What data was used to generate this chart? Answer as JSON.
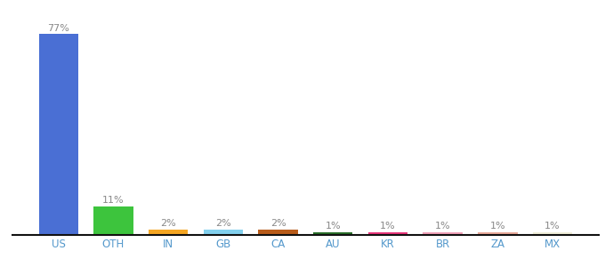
{
  "categories": [
    "US",
    "OTH",
    "IN",
    "GB",
    "CA",
    "AU",
    "KR",
    "BR",
    "ZA",
    "MX"
  ],
  "values": [
    77,
    11,
    2,
    2,
    2,
    1,
    1,
    1,
    1,
    1
  ],
  "labels": [
    "77%",
    "11%",
    "2%",
    "2%",
    "2%",
    "1%",
    "1%",
    "1%",
    "1%",
    "1%"
  ],
  "bar_colors": [
    "#4a6fd4",
    "#3dc43d",
    "#f5a623",
    "#82d0ed",
    "#b85c1a",
    "#2a6e2a",
    "#e8357a",
    "#f0a0b8",
    "#e8a898",
    "#f0eed8"
  ],
  "background_color": "#ffffff",
  "ylim": [
    0,
    86
  ],
  "label_color": "#888888",
  "tick_color": "#5599cc",
  "bar_width": 0.72
}
